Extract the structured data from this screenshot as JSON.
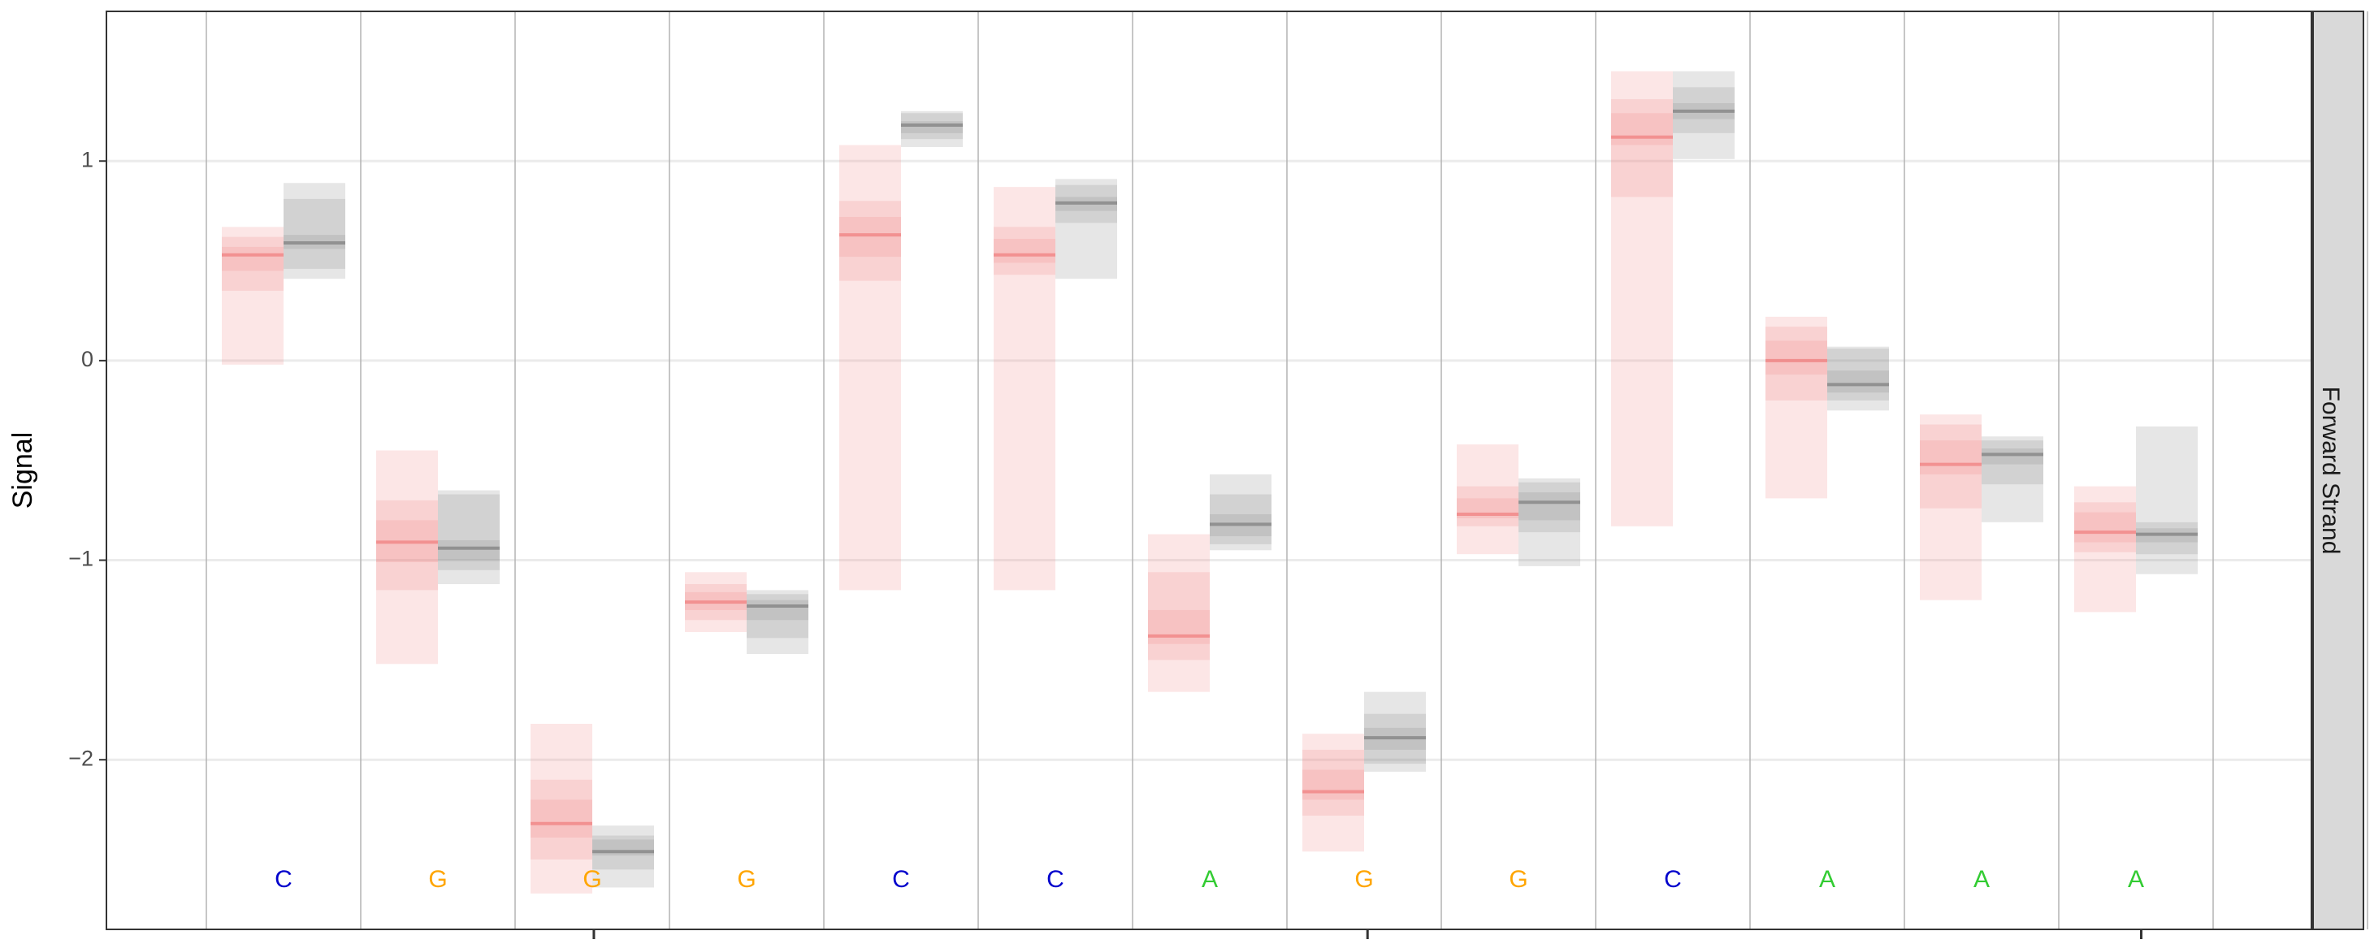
{
  "chart_data": {
    "type": "boxplot-bands",
    "ylabel": "Signal",
    "facet_label": "Forward Strand",
    "ylim": [
      -2.85,
      1.75
    ],
    "y_ticks": [
      1,
      0,
      -1,
      -2
    ],
    "y_tick_labels": [
      "1",
      "0",
      "−1",
      "−2"
    ],
    "x_major_ticks": [
      3.5,
      8.5,
      13.5
    ],
    "grid": true,
    "colors": {
      "A": "#33cc33",
      "C": "#0000cc",
      "G": "#ffa500",
      "sample": "#f08080",
      "control": "#808080",
      "strip_fill": "#d9d9d9",
      "grid": "#ebebeb",
      "divider": "#b3b3b3"
    },
    "bases": [
      "C",
      "G",
      "G",
      "G",
      "C",
      "C",
      "A",
      "G",
      "G",
      "C",
      "A",
      "A",
      "A"
    ],
    "series": [
      {
        "group": "sample",
        "values": [
          {
            "q": [
              -0.02,
              0.35,
              0.45,
              0.53,
              0.57,
              0.62,
              0.67
            ]
          },
          {
            "q": [
              -1.52,
              -1.15,
              -1.01,
              -0.91,
              -0.8,
              -0.7,
              -0.45
            ]
          },
          {
            "q": [
              -2.67,
              -2.5,
              -2.39,
              -2.32,
              -2.2,
              -2.1,
              -1.82
            ]
          },
          {
            "q": [
              -1.36,
              -1.3,
              -1.25,
              -1.21,
              -1.16,
              -1.12,
              -1.06
            ]
          },
          {
            "q": [
              -1.15,
              0.4,
              0.52,
              0.63,
              0.72,
              0.8,
              1.08
            ]
          },
          {
            "q": [
              -1.15,
              0.43,
              0.49,
              0.53,
              0.61,
              0.67,
              0.87
            ]
          },
          {
            "q": [
              -1.66,
              -1.5,
              -1.42,
              -1.38,
              -1.25,
              -1.06,
              -0.87
            ]
          },
          {
            "q": [
              -2.46,
              -2.28,
              -2.2,
              -2.16,
              -2.05,
              -1.95,
              -1.87
            ]
          },
          {
            "q": [
              -0.97,
              -0.83,
              -0.79,
              -0.77,
              -0.69,
              -0.63,
              -0.42
            ]
          },
          {
            "q": [
              -0.83,
              0.82,
              1.08,
              1.12,
              1.24,
              1.31,
              1.45
            ]
          },
          {
            "q": [
              -0.69,
              -0.2,
              -0.07,
              0.0,
              0.1,
              0.17,
              0.22
            ]
          },
          {
            "q": [
              -1.2,
              -0.74,
              -0.57,
              -0.52,
              -0.4,
              -0.32,
              -0.27
            ]
          },
          {
            "q": [
              -1.26,
              -0.96,
              -0.91,
              -0.86,
              -0.76,
              -0.71,
              -0.63
            ]
          }
        ]
      },
      {
        "group": "control",
        "values": [
          {
            "q": [
              0.41,
              0.46,
              0.56,
              0.59,
              0.63,
              0.81,
              0.89
            ]
          },
          {
            "q": [
              -1.12,
              -1.05,
              -1.0,
              -0.94,
              -0.9,
              -0.67,
              -0.65
            ]
          },
          {
            "q": [
              -2.64,
              -2.55,
              -2.48,
              -2.46,
              -2.4,
              -2.38,
              -2.33
            ]
          },
          {
            "q": [
              -1.47,
              -1.39,
              -1.3,
              -1.23,
              -1.2,
              -1.17,
              -1.15
            ]
          },
          {
            "q": [
              1.07,
              1.11,
              1.14,
              1.18,
              1.2,
              1.24,
              1.25
            ]
          },
          {
            "q": [
              0.41,
              0.69,
              0.75,
              0.79,
              0.82,
              0.88,
              0.91
            ]
          },
          {
            "q": [
              -0.95,
              -0.92,
              -0.88,
              -0.82,
              -0.77,
              -0.67,
              -0.57
            ]
          },
          {
            "q": [
              -2.06,
              -2.02,
              -1.95,
              -1.89,
              -1.84,
              -1.77,
              -1.66
            ]
          },
          {
            "q": [
              -1.03,
              -0.86,
              -0.8,
              -0.71,
              -0.66,
              -0.61,
              -0.59
            ]
          },
          {
            "q": [
              1.01,
              1.14,
              1.21,
              1.25,
              1.29,
              1.37,
              1.45
            ]
          },
          {
            "q": [
              -0.25,
              -0.2,
              -0.16,
              -0.12,
              -0.05,
              0.06,
              0.07
            ]
          },
          {
            "q": [
              -0.81,
              -0.62,
              -0.52,
              -0.47,
              -0.44,
              -0.4,
              -0.38
            ]
          },
          {
            "q": [
              -1.07,
              -0.97,
              -0.91,
              -0.87,
              -0.84,
              -0.81,
              -0.33
            ]
          }
        ]
      }
    ]
  }
}
